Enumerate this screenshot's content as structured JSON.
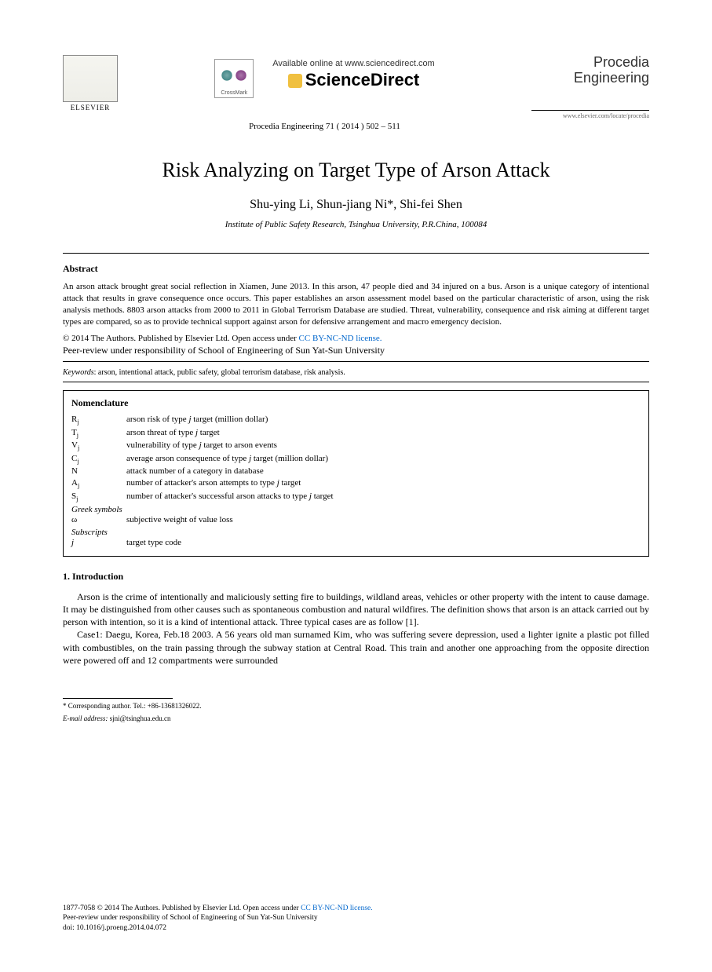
{
  "header": {
    "publisher_name": "ELSEVIER",
    "available_text": "Available online at www.sciencedirect.com",
    "platform_name": "ScienceDirect",
    "crossmark_label": "CrossMark",
    "journal_name_line1": "Procedia",
    "journal_name_line2": "Engineering",
    "journal_url": "www.elsevier.com/locate/procedia",
    "citation": "Procedia Engineering 71 ( 2014 ) 502 – 511"
  },
  "paper": {
    "title": "Risk Analyzing on Target Type of Arson Attack",
    "authors": "Shu-ying Li, Shun-jiang Ni*, Shi-fei Shen",
    "affiliation": "Institute of Public Safety Research, Tsinghua University, P.R.China, 100084"
  },
  "abstract": {
    "heading": "Abstract",
    "text": "An arson attack brought great social reflection in Xiamen, June 2013. In this arson, 47 people died and 34 injured on a bus. Arson is a unique category of intentional attack that results in grave consequence once occurs. This paper establishes an arson assessment model based on the particular characteristic of arson, using the risk analysis methods. 8803 arson attacks from 2000 to 2011 in Global Terrorism Database are studied. Threat, vulnerability, consequence and risk aiming at different target types are compared, so as to provide technical support against arson for defensive arrangement and macro emergency decision."
  },
  "copyright": {
    "line1_prefix": "© 2014 The Authors. Published by Elsevier Ltd. ",
    "open_access": "Open access under ",
    "license_text": "CC BY-NC-ND license.",
    "peer_review": "Peer-review under responsibility of School of Engineering of Sun Yat-Sun University"
  },
  "keywords": {
    "label": "Keywords",
    "text": ": arson, intentional attack, public safety, global terrorism database, risk analysis."
  },
  "nomenclature": {
    "heading": "Nomenclature",
    "items": [
      {
        "symbol": "R",
        "sub": "j",
        "desc": "arson risk of type j target (million dollar)",
        "desc_italic_j": true
      },
      {
        "symbol": "T",
        "sub": "j",
        "desc": "arson threat of type j target",
        "desc_italic_j": true
      },
      {
        "symbol": "V",
        "sub": "j",
        "desc": "vulnerability of type j target to arson events",
        "desc_italic_j": true
      },
      {
        "symbol": "C",
        "sub": "j",
        "desc": "average arson consequence of type j target (million dollar)",
        "desc_italic_j": true
      },
      {
        "symbol": "N",
        "sub": "",
        "desc": "attack number of a category in database",
        "desc_italic_j": false
      },
      {
        "symbol": "A",
        "sub": "j",
        "desc": "number of attacker's arson attempts to type j target",
        "desc_italic_j": true
      },
      {
        "symbol": "S",
        "sub": "j",
        "desc": "number of attacker's successful arson attacks to type j target",
        "desc_italic_j": true
      }
    ],
    "greek_heading": "Greek symbols",
    "greek_items": [
      {
        "symbol": "ω",
        "sub": "",
        "desc": "subjective weight of value loss"
      }
    ],
    "subscripts_heading": "Subscripts",
    "subscripts_items": [
      {
        "symbol": " j",
        "sub": "",
        "desc": "target type code",
        "symbol_italic": true
      }
    ]
  },
  "introduction": {
    "heading": "1. Introduction",
    "para1": "Arson is the crime of intentionally and maliciously setting fire to buildings, wildland areas, vehicles or other property with the intent to cause damage. It may be distinguished from other causes such as spontaneous combustion and natural wildfires. The definition shows that arson is an attack carried out by person with intention, so it is a kind of intentional attack. Three typical cases are as follow [1].",
    "para2": "Case1: Daegu, Korea, Feb.18 2003. A 56 years old man surnamed Kim, who was suffering severe depression, used a lighter ignite a plastic pot filled with combustibles, on the train passing through the subway station at Central Road. This train and another one approaching from the opposite direction were powered off and 12 compartments were surrounded"
  },
  "footnote": {
    "corresponding": "* Corresponding author. Tel.: +86-13681326022.",
    "email_label": "E-mail address:",
    "email": " sjni@tsinghua.edu.cn"
  },
  "bottom": {
    "issn": "1877-7058 © 2014 The Authors. Published by Elsevier Ltd. ",
    "open_access": "Open access under ",
    "license": "CC BY-NC-ND license.",
    "peer": "Peer-review under responsibility of School of Engineering of Sun Yat-Sun University",
    "doi": "doi: 10.1016/j.proeng.2014.04.072"
  },
  "colors": {
    "link": "#0066cc",
    "text": "#000000",
    "background": "#ffffff"
  }
}
